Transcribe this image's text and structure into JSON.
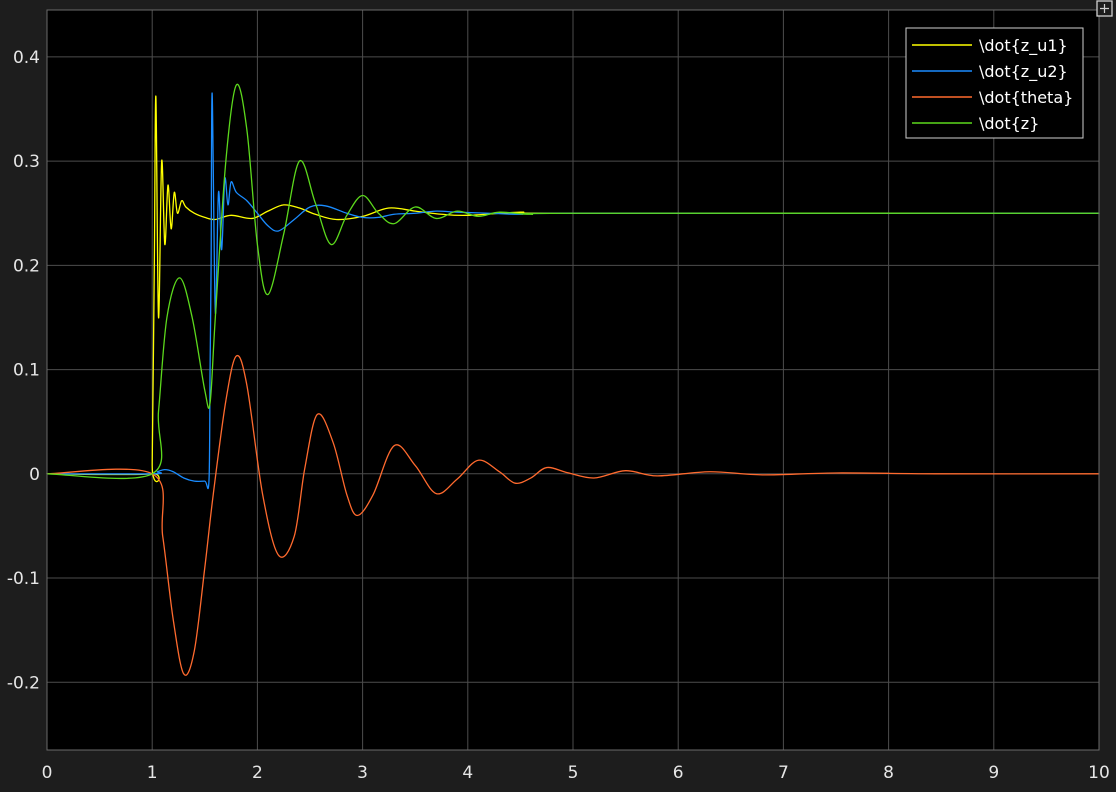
{
  "chart_data": {
    "type": "line",
    "title": "",
    "xlabel": "",
    "ylabel": "",
    "xlim": [
      0,
      10
    ],
    "ylim": [
      -0.265,
      0.445
    ],
    "grid": true,
    "legend_position": "top-right",
    "xticks": [
      0,
      1,
      2,
      3,
      4,
      5,
      6,
      7,
      8,
      9,
      10
    ],
    "xtick_labels": [
      "0",
      "1",
      "2",
      "3",
      "4",
      "5",
      "6",
      "7",
      "8",
      "9",
      "10"
    ],
    "yticks": [
      0.4,
      0.3,
      0.2,
      0.1,
      0,
      -0.1,
      -0.2
    ],
    "ytick_labels": [
      "0.4",
      "0.3",
      "0.2",
      "0.1",
      "0",
      "-0.1",
      "-0.2"
    ],
    "series": [
      {
        "name": "\\dot{z_u1}",
        "color": "#ffff00",
        "points": [
          [
            0,
            0
          ],
          [
            0.99,
            0
          ],
          [
            1.0,
            0.01
          ],
          [
            1.02,
            0.2
          ],
          [
            1.035,
            0.362
          ],
          [
            1.06,
            0.15
          ],
          [
            1.09,
            0.3
          ],
          [
            1.12,
            0.22
          ],
          [
            1.15,
            0.277
          ],
          [
            1.18,
            0.235
          ],
          [
            1.21,
            0.27
          ],
          [
            1.24,
            0.25
          ],
          [
            1.28,
            0.262
          ],
          [
            1.32,
            0.256
          ],
          [
            1.4,
            0.25
          ],
          [
            1.5,
            0.246
          ],
          [
            1.6,
            0.244
          ],
          [
            1.75,
            0.248
          ],
          [
            1.95,
            0.245
          ],
          [
            2.1,
            0.252
          ],
          [
            2.25,
            0.258
          ],
          [
            2.4,
            0.255
          ],
          [
            2.55,
            0.249
          ],
          [
            2.75,
            0.244
          ],
          [
            3.0,
            0.247
          ],
          [
            3.25,
            0.255
          ],
          [
            3.5,
            0.252
          ],
          [
            3.75,
            0.249
          ],
          [
            4.0,
            0.248
          ],
          [
            4.5,
            0.251
          ],
          [
            5.0,
            0.25
          ],
          [
            10,
            0.25
          ]
        ]
      },
      {
        "name": "\\dot{z_u2}",
        "color": "#1a8cff",
        "points": [
          [
            0,
            0
          ],
          [
            1.0,
            0
          ],
          [
            1.05,
            0.002
          ],
          [
            1.12,
            0.004
          ],
          [
            1.2,
            0.002
          ],
          [
            1.3,
            -0.004
          ],
          [
            1.4,
            -0.007
          ],
          [
            1.5,
            -0.007
          ],
          [
            1.54,
            -0.006
          ],
          [
            1.55,
            0.1
          ],
          [
            1.56,
            0.2
          ],
          [
            1.57,
            0.365
          ],
          [
            1.6,
            0.155
          ],
          [
            1.63,
            0.27
          ],
          [
            1.66,
            0.215
          ],
          [
            1.69,
            0.283
          ],
          [
            1.72,
            0.258
          ],
          [
            1.75,
            0.28
          ],
          [
            1.8,
            0.27
          ],
          [
            1.9,
            0.262
          ],
          [
            2.0,
            0.25
          ],
          [
            2.1,
            0.238
          ],
          [
            2.2,
            0.233
          ],
          [
            2.35,
            0.244
          ],
          [
            2.5,
            0.256
          ],
          [
            2.65,
            0.257
          ],
          [
            2.85,
            0.25
          ],
          [
            3.0,
            0.246
          ],
          [
            3.15,
            0.246
          ],
          [
            3.3,
            0.249
          ],
          [
            3.5,
            0.25
          ],
          [
            3.7,
            0.252
          ],
          [
            3.9,
            0.251
          ],
          [
            4.2,
            0.25
          ],
          [
            4.5,
            0.249
          ],
          [
            5.0,
            0.25
          ],
          [
            10,
            0.25
          ]
        ]
      },
      {
        "name": "\\dot{theta}",
        "color": "#ff6a2e",
        "points": [
          [
            0,
            0
          ],
          [
            1.0,
            0
          ],
          [
            1.1,
            -0.06
          ],
          [
            1.2,
            -0.14
          ],
          [
            1.3,
            -0.192
          ],
          [
            1.4,
            -0.17
          ],
          [
            1.5,
            -0.09
          ],
          [
            1.58,
            -0.02
          ],
          [
            1.7,
            0.07
          ],
          [
            1.8,
            0.113
          ],
          [
            1.9,
            0.085
          ],
          [
            2.05,
            -0.02
          ],
          [
            2.2,
            -0.078
          ],
          [
            2.35,
            -0.06
          ],
          [
            2.45,
            0.005
          ],
          [
            2.57,
            0.057
          ],
          [
            2.72,
            0.03
          ],
          [
            2.85,
            -0.02
          ],
          [
            2.95,
            -0.04
          ],
          [
            3.1,
            -0.02
          ],
          [
            3.3,
            0.027
          ],
          [
            3.5,
            0.008
          ],
          [
            3.7,
            -0.019
          ],
          [
            3.9,
            -0.005
          ],
          [
            4.1,
            0.013
          ],
          [
            4.3,
            0.002
          ],
          [
            4.45,
            -0.009
          ],
          [
            4.6,
            -0.004
          ],
          [
            4.75,
            0.006
          ],
          [
            4.95,
            0.001
          ],
          [
            5.2,
            -0.004
          ],
          [
            5.5,
            0.003
          ],
          [
            5.8,
            -0.002
          ],
          [
            6.3,
            0.002
          ],
          [
            6.8,
            -0.001
          ],
          [
            7.5,
            0.0008
          ],
          [
            8.5,
            0
          ],
          [
            10,
            0
          ]
        ]
      },
      {
        "name": "\\dot{z}",
        "color": "#5cd91c",
        "points": [
          [
            0,
            0
          ],
          [
            1.0,
            0
          ],
          [
            1.06,
            0.06
          ],
          [
            1.14,
            0.15
          ],
          [
            1.26,
            0.188
          ],
          [
            1.38,
            0.15
          ],
          [
            1.5,
            0.08
          ],
          [
            1.55,
            0.068
          ],
          [
            1.6,
            0.15
          ],
          [
            1.7,
            0.3
          ],
          [
            1.8,
            0.373
          ],
          [
            1.9,
            0.33
          ],
          [
            2.0,
            0.22
          ],
          [
            2.1,
            0.172
          ],
          [
            2.25,
            0.23
          ],
          [
            2.4,
            0.3
          ],
          [
            2.55,
            0.26
          ],
          [
            2.7,
            0.22
          ],
          [
            2.85,
            0.248
          ],
          [
            3.0,
            0.267
          ],
          [
            3.15,
            0.25
          ],
          [
            3.3,
            0.24
          ],
          [
            3.5,
            0.256
          ],
          [
            3.7,
            0.245
          ],
          [
            3.9,
            0.252
          ],
          [
            4.1,
            0.247
          ],
          [
            4.3,
            0.251
          ],
          [
            4.6,
            0.249
          ],
          [
            5.0,
            0.25
          ],
          [
            10,
            0.25
          ]
        ]
      }
    ]
  }
}
